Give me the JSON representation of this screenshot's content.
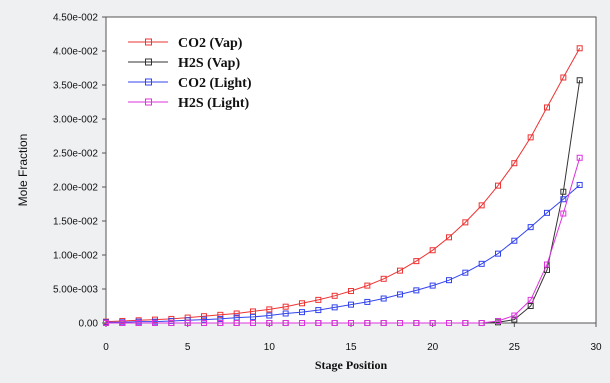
{
  "chart_data": {
    "type": "line",
    "xlabel": "Stage Position",
    "ylabel": "Mole Fraction",
    "xlim": [
      0,
      30
    ],
    "ylim": [
      0,
      0.045
    ],
    "x_ticks": [
      0,
      5,
      10,
      15,
      20,
      25,
      30
    ],
    "x_tick_labels": [
      "0",
      "5",
      "10",
      "15",
      "20",
      "25",
      "30"
    ],
    "y_ticks": [
      0,
      0.005,
      0.01,
      0.015,
      0.02,
      0.025,
      0.03,
      0.035,
      0.04,
      0.045
    ],
    "y_tick_labels": [
      "0.00",
      "5.00e-003",
      "1.00e-002",
      "1.50e-002",
      "2.00e-002",
      "2.50e-002",
      "3.00e-002",
      "3.50e-002",
      "4.00e-002",
      "4.50e-002"
    ],
    "grid": false,
    "legend_position": "top-left",
    "x": [
      0,
      1,
      2,
      3,
      4,
      5,
      6,
      7,
      8,
      9,
      10,
      11,
      12,
      13,
      14,
      15,
      16,
      17,
      18,
      19,
      20,
      21,
      22,
      23,
      24,
      25,
      26,
      27,
      28,
      29
    ],
    "series": [
      {
        "name": "CO2 (Vap)",
        "color": "#ee3333",
        "values": [
          0.0002,
          0.0003,
          0.0004,
          0.0005,
          0.0006,
          0.0008,
          0.001,
          0.0012,
          0.0014,
          0.0017,
          0.002,
          0.0024,
          0.0029,
          0.0034,
          0.004,
          0.0047,
          0.0055,
          0.0065,
          0.0077,
          0.0091,
          0.0107,
          0.0126,
          0.0148,
          0.0173,
          0.0202,
          0.0235,
          0.0273,
          0.0317,
          0.0361,
          0.0404
        ]
      },
      {
        "name": "H2S (Vap)",
        "color": "#333333",
        "values": [
          0,
          0,
          0,
          0,
          0,
          0,
          0,
          0,
          0,
          0,
          0,
          0,
          0,
          0,
          0,
          0,
          0,
          0,
          0,
          0,
          0,
          0,
          0,
          0,
          0.0001,
          0.0005,
          0.0025,
          0.0078,
          0.0193,
          0.0357
        ]
      },
      {
        "name": "CO2 (Light)",
        "color": "#3344ee",
        "values": [
          0.0001,
          0.0001,
          0.0002,
          0.0002,
          0.0003,
          0.0004,
          0.0005,
          0.0006,
          0.0008,
          0.0009,
          0.0011,
          0.0014,
          0.0016,
          0.0019,
          0.0023,
          0.0027,
          0.0031,
          0.0036,
          0.0042,
          0.0048,
          0.0055,
          0.0063,
          0.0074,
          0.0087,
          0.0102,
          0.0121,
          0.0141,
          0.0162,
          0.0182,
          0.0203
        ]
      },
      {
        "name": "H2S (Light)",
        "color": "#dd33dd",
        "values": [
          0,
          0,
          0,
          0,
          0,
          0,
          0,
          0,
          0,
          0,
          0,
          0,
          0,
          0,
          0,
          0,
          0,
          0,
          0,
          0,
          0,
          0,
          0,
          0,
          0.0003,
          0.0011,
          0.0034,
          0.0086,
          0.0161,
          0.0243
        ]
      }
    ]
  }
}
